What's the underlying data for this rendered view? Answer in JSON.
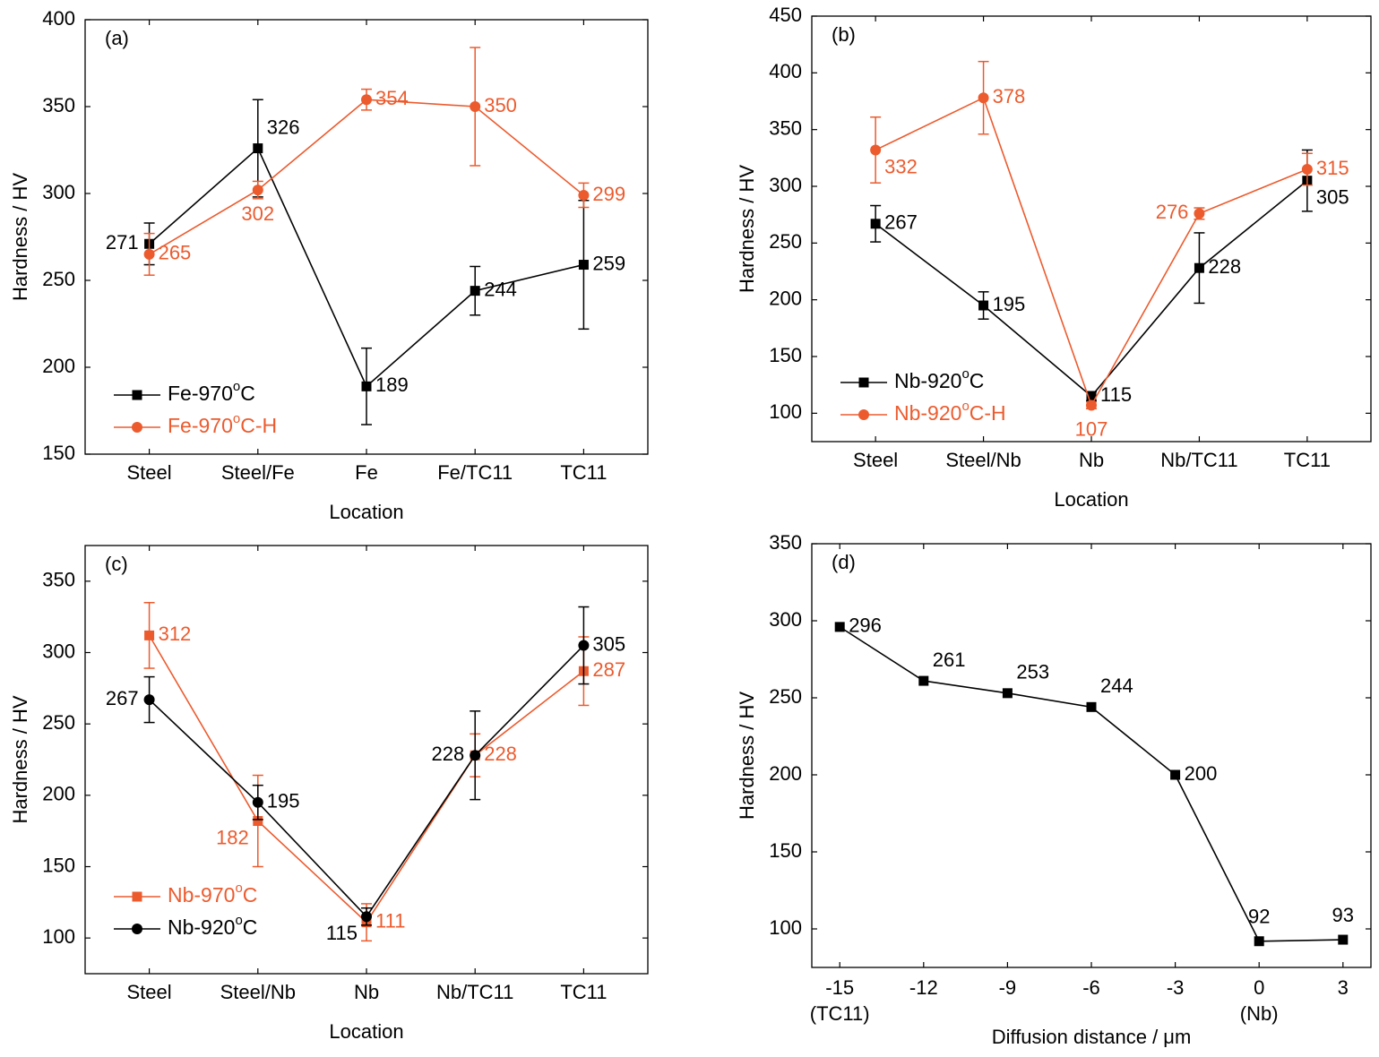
{
  "colors": {
    "black": "#000000",
    "orange": "#ec5b2e"
  },
  "chart_data": [
    {
      "id": "a",
      "type": "line",
      "panel_label": "(a)",
      "xlabel": "Location",
      "ylabel": "Hardness / HV",
      "ylim": [
        150,
        400
      ],
      "yticks": [
        "150",
        "200",
        "250",
        "300",
        "350",
        "400"
      ],
      "categories": [
        "Steel",
        "Steel/Fe",
        "Fe",
        "Fe/TC11",
        "TC11"
      ],
      "legend_position": "lower-left",
      "series": [
        {
          "name": "Fe-970°C",
          "color": "black",
          "marker": "square",
          "values": [
            271,
            326,
            189,
            244,
            259
          ],
          "errors": [
            12,
            28,
            22,
            14,
            37
          ],
          "labels": [
            "271",
            "326",
            "189",
            "244",
            "259"
          ],
          "label_positions": [
            "left",
            "above-right",
            "right",
            "right",
            "right"
          ]
        },
        {
          "name": "Fe-970°C-H",
          "color": "orange",
          "marker": "circle",
          "values": [
            265,
            302,
            354,
            350,
            299
          ],
          "errors": [
            12,
            5,
            6,
            34,
            7
          ],
          "labels": [
            "265",
            "302",
            "354",
            "350",
            "299"
          ],
          "label_positions": [
            "right",
            "below",
            "right",
            "right",
            "right"
          ]
        }
      ]
    },
    {
      "id": "b",
      "type": "line",
      "panel_label": "(b)",
      "xlabel": "Location",
      "ylabel": "Hardness / HV",
      "ylim": [
        75,
        450
      ],
      "yticks": [
        "100",
        "150",
        "200",
        "250",
        "300",
        "350",
        "400",
        "450"
      ],
      "categories": [
        "Steel",
        "Steel/Nb",
        "Nb",
        "Nb/TC11",
        "TC11"
      ],
      "legend_position": "lower-left",
      "series": [
        {
          "name": "Nb-920°C",
          "color": "black",
          "marker": "square",
          "values": [
            267,
            195,
            115,
            228,
            305
          ],
          "errors": [
            16,
            12,
            4,
            31,
            27
          ],
          "labels": [
            "267",
            "195",
            "115",
            "228",
            "305"
          ],
          "label_positions": [
            "right",
            "right",
            "right",
            "right",
            "below-right"
          ]
        },
        {
          "name": "Nb-920°C-H",
          "color": "orange",
          "marker": "circle",
          "values": [
            332,
            378,
            107,
            276,
            315
          ],
          "errors": [
            29,
            32,
            3,
            5,
            14
          ],
          "labels": [
            "332",
            "378",
            "107",
            "276",
            "315"
          ],
          "label_positions": [
            "below-right",
            "right",
            "below",
            "left",
            "right"
          ]
        }
      ]
    },
    {
      "id": "c",
      "type": "line",
      "panel_label": "(c)",
      "xlabel": "Location",
      "ylabel": "Hardness / HV",
      "ylim": [
        75,
        375
      ],
      "yticks": [
        "100",
        "150",
        "200",
        "250",
        "300",
        "350"
      ],
      "categories": [
        "Steel",
        "Steel/Nb",
        "Nb",
        "Nb/TC11",
        "TC11"
      ],
      "legend_position": "lower-left",
      "series": [
        {
          "name": "Nb-970°C",
          "color": "orange",
          "marker": "square",
          "values": [
            312,
            182,
            111,
            228,
            287
          ],
          "errors": [
            23,
            32,
            13,
            15,
            24
          ],
          "labels": [
            "312",
            "182",
            "111",
            "228",
            "287"
          ],
          "label_positions": [
            "right",
            "below-left",
            "right",
            "right",
            "right"
          ]
        },
        {
          "name": "Nb-920°C",
          "color": "black",
          "marker": "circle",
          "values": [
            267,
            195,
            115,
            228,
            305
          ],
          "errors": [
            16,
            12,
            6,
            31,
            27
          ],
          "labels": [
            "267",
            "195",
            "115",
            "228",
            "305"
          ],
          "label_positions": [
            "left",
            "right",
            "below-left",
            "left",
            "right"
          ]
        }
      ]
    },
    {
      "id": "d",
      "type": "line",
      "panel_label": "(d)",
      "xlabel": "Diffusion distance / μm",
      "ylabel": "Hardness / HV",
      "ylim": [
        75,
        350
      ],
      "yticks": [
        "100",
        "150",
        "200",
        "250",
        "300",
        "350"
      ],
      "xlim": [
        -16,
        4
      ],
      "xticks": [
        -15,
        -12,
        -9,
        -6,
        -3,
        0,
        3
      ],
      "xtick_labels": [
        "-15",
        "-12",
        "-9",
        "-6",
        "-3",
        "0",
        "3"
      ],
      "xtick_sublabels": [
        "(TC11)",
        "",
        "",
        "",
        "",
        "(Nb)",
        ""
      ],
      "series": [
        {
          "name": "",
          "color": "black",
          "marker": "square",
          "x": [
            -15,
            -12,
            -9,
            -6,
            -3,
            0,
            3
          ],
          "values": [
            296,
            261,
            253,
            244,
            200,
            92,
            93
          ],
          "labels": [
            "296",
            "261",
            "253",
            "244",
            "200",
            "92",
            "93"
          ],
          "label_positions": [
            "right",
            "above-right",
            "above-right",
            "above-right",
            "right",
            "above",
            "above"
          ]
        }
      ]
    }
  ]
}
